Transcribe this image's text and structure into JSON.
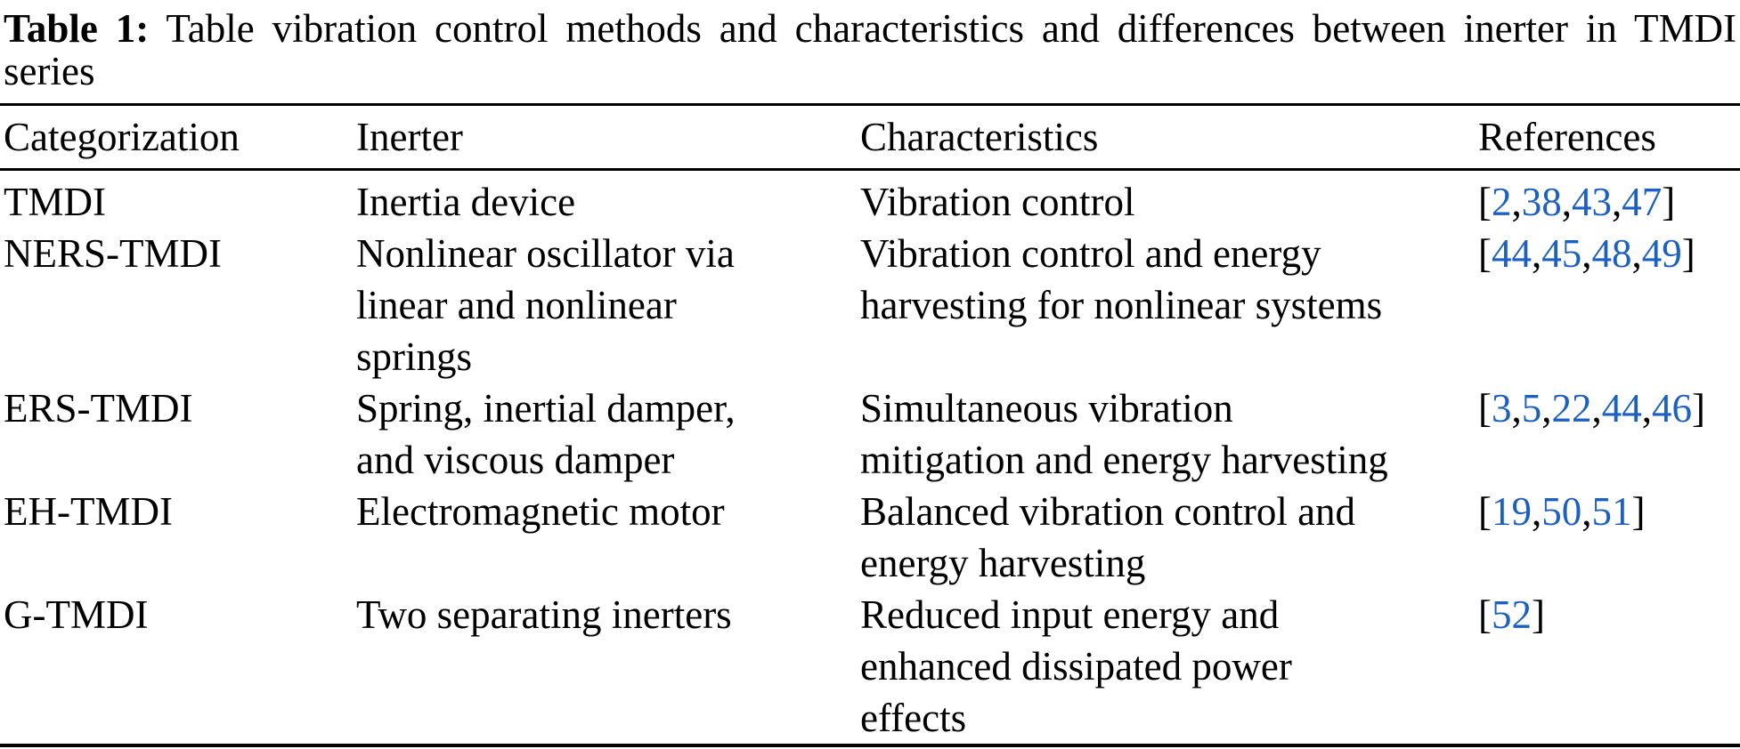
{
  "caption": {
    "label": "Table 1:",
    "line1_rest": " Table vibration control methods and characteristics and differences between inerter in TMDI",
    "line2": "series"
  },
  "table": {
    "columns": [
      "Categorization",
      "Inerter",
      "Characteristics",
      "References"
    ],
    "rows": [
      {
        "categorization": "TMDI",
        "inerter_lines": [
          "Inertia device"
        ],
        "characteristics_lines": [
          "Vibration control"
        ],
        "references": [
          2,
          38,
          43,
          47
        ]
      },
      {
        "categorization": "NERS-TMDI",
        "inerter_lines": [
          "Nonlinear oscillator via",
          "linear and nonlinear",
          "springs"
        ],
        "characteristics_lines": [
          "Vibration control and energy",
          "harvesting for nonlinear systems"
        ],
        "references": [
          44,
          45,
          48,
          49
        ]
      },
      {
        "categorization": "ERS-TMDI",
        "inerter_lines": [
          "Spring, inertial damper,",
          "and viscous damper"
        ],
        "characteristics_lines": [
          "Simultaneous vibration",
          "mitigation and energy harvesting"
        ],
        "references": [
          3,
          5,
          22,
          44,
          46
        ]
      },
      {
        "categorization": "EH-TMDI",
        "inerter_lines": [
          "Electromagnetic motor"
        ],
        "characteristics_lines": [
          "Balanced vibration control and",
          "energy harvesting"
        ],
        "references": [
          19,
          50,
          51
        ]
      },
      {
        "categorization": "G-TMDI",
        "inerter_lines": [
          "Two separating inerters"
        ],
        "characteristics_lines": [
          "Reduced input energy and",
          "enhanced dissipated power",
          "effects"
        ],
        "references": [
          52
        ]
      }
    ]
  },
  "colors": {
    "text": "#000000",
    "background": "#ffffff",
    "link_blue": "#1c61c2",
    "rule_black": "#000000"
  }
}
